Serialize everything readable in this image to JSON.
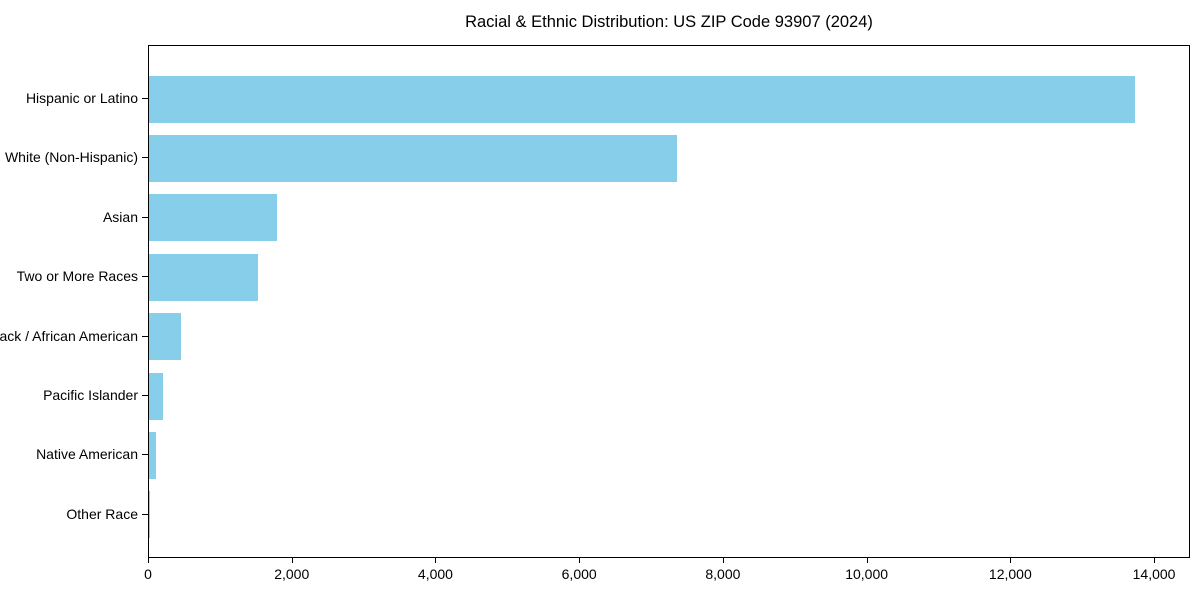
{
  "chart_data": {
    "type": "bar",
    "orientation": "horizontal",
    "title": "Racial & Ethnic Distribution: US ZIP Code 93907 (2024)",
    "categories": [
      "Hispanic or Latino",
      "White (Non-Hispanic)",
      "Asian",
      "Two or More Races",
      "Black / African American",
      "Pacific Islander",
      "Native American",
      "Other Race"
    ],
    "values": [
      13750,
      7360,
      1780,
      1520,
      450,
      195,
      100,
      10
    ],
    "xlabel": "",
    "ylabel": "",
    "xlim": [
      0,
      14500
    ],
    "x_ticks": [
      0,
      2000,
      4000,
      6000,
      8000,
      10000,
      12000,
      14000
    ],
    "x_tick_labels": [
      "0",
      "2,000",
      "4,000",
      "6,000",
      "8,000",
      "10,000",
      "12,000",
      "14,000"
    ],
    "bar_color": "#87CEEB",
    "background_color": "#ffffff",
    "axis_color": "#000000",
    "grid": false,
    "legend_position": "none"
  }
}
